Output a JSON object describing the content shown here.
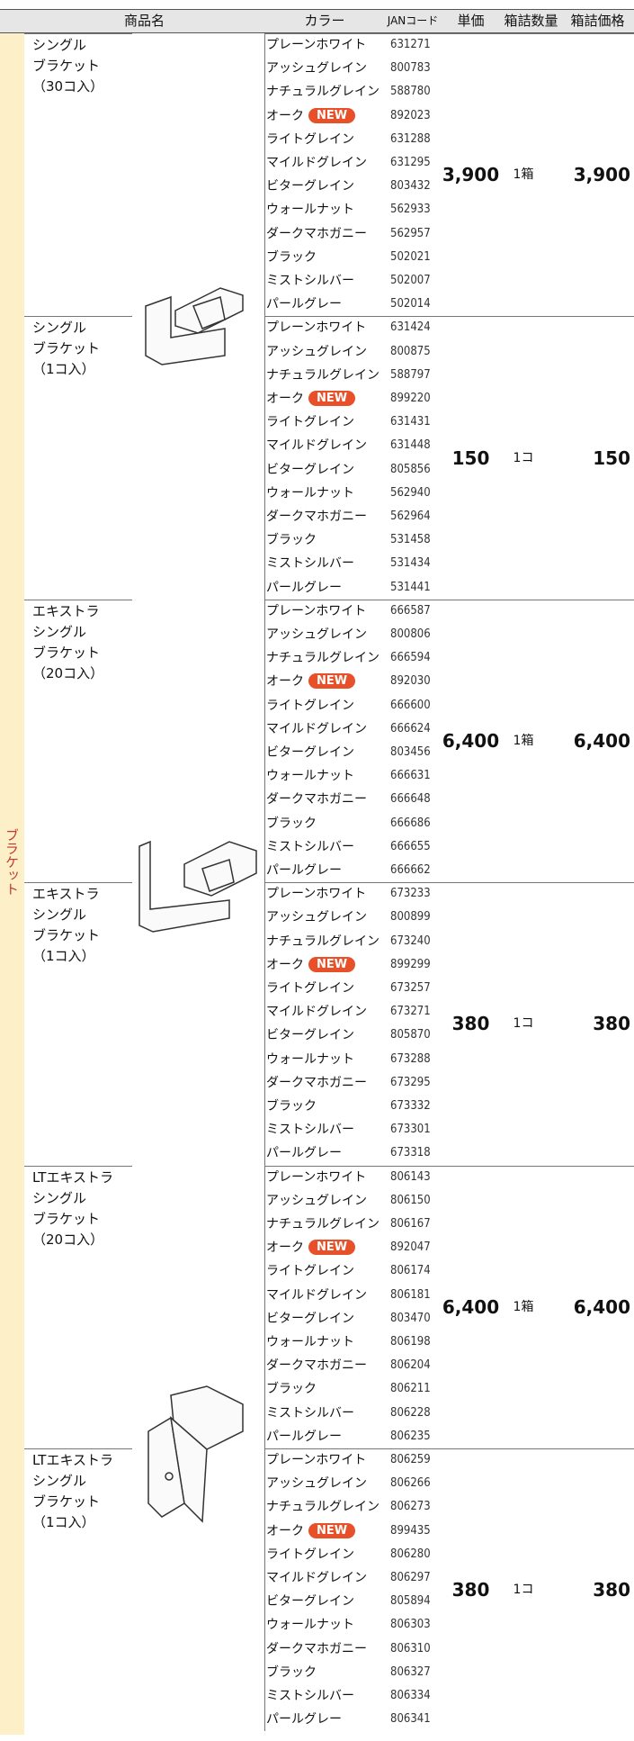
{
  "header": [
    "商品名",
    "カラー",
    "JANコード",
    "単価",
    "箱詰数量",
    "箱詰価格"
  ],
  "side_label": "ブラケット",
  "groups": [
    {
      "name": [
        "シングル",
        "ブラケット",
        "（30コ入）"
      ],
      "price": "3,900",
      "qty": "1箱",
      "box_price": "3,900",
      "rows": [
        [
          "プレーンホワイト",
          "631271"
        ],
        [
          "アッシュグレイン",
          "800783"
        ],
        [
          "ナチュラルグレイン",
          "588780"
        ],
        [
          "オーク",
          "892023",
          "NEW"
        ],
        [
          "ライトグレイン",
          "631288"
        ],
        [
          "マイルドグレイン",
          "631295"
        ],
        [
          "ビターグレイン",
          "803432"
        ],
        [
          "ウォールナット",
          "562933"
        ],
        [
          "ダークマホガニー",
          "562957"
        ],
        [
          "ブラック",
          "502021"
        ],
        [
          "ミストシルバー",
          "502007"
        ],
        [
          "パールグレー",
          "502014"
        ]
      ]
    },
    {
      "name": [
        "シングル",
        "ブラケット",
        "（1コ入）"
      ],
      "price": "150",
      "qty": "1コ",
      "box_price": "150",
      "rows": [
        [
          "プレーンホワイト",
          "631424"
        ],
        [
          "アッシュグレイン",
          "800875"
        ],
        [
          "ナチュラルグレイン",
          "588797"
        ],
        [
          "オーク",
          "899220",
          "NEW"
        ],
        [
          "ライトグレイン",
          "631431"
        ],
        [
          "マイルドグレイン",
          "631448"
        ],
        [
          "ビターグレイン",
          "805856"
        ],
        [
          "ウォールナット",
          "562940"
        ],
        [
          "ダークマホガニー",
          "562964"
        ],
        [
          "ブラック",
          "531458"
        ],
        [
          "ミストシルバー",
          "531434"
        ],
        [
          "パールグレー",
          "531441"
        ]
      ]
    },
    {
      "name": [
        "エキストラ",
        "シングル",
        "ブラケット",
        "（20コ入）"
      ],
      "price": "6,400",
      "qty": "1箱",
      "box_price": "6,400",
      "rows": [
        [
          "プレーンホワイト",
          "666587"
        ],
        [
          "アッシュグレイン",
          "800806"
        ],
        [
          "ナチュラルグレイン",
          "666594"
        ],
        [
          "オーク",
          "892030",
          "NEW"
        ],
        [
          "ライトグレイン",
          "666600"
        ],
        [
          "マイルドグレイン",
          "666624"
        ],
        [
          "ビターグレイン",
          "803456"
        ],
        [
          "ウォールナット",
          "666631"
        ],
        [
          "ダークマホガニー",
          "666648"
        ],
        [
          "ブラック",
          "666686"
        ],
        [
          "ミストシルバー",
          "666655"
        ],
        [
          "パールグレー",
          "666662"
        ]
      ]
    },
    {
      "name": [
        "エキストラ",
        "シングル",
        "ブラケット",
        "（1コ入）"
      ],
      "price": "380",
      "qty": "1コ",
      "box_price": "380",
      "rows": [
        [
          "プレーンホワイト",
          "673233"
        ],
        [
          "アッシュグレイン",
          "800899"
        ],
        [
          "ナチュラルグレイン",
          "673240"
        ],
        [
          "オーク",
          "899299",
          "NEW"
        ],
        [
          "ライトグレイン",
          "673257"
        ],
        [
          "マイルドグレイン",
          "673271"
        ],
        [
          "ビターグレイン",
          "805870"
        ],
        [
          "ウォールナット",
          "673288"
        ],
        [
          "ダークマホガニー",
          "673295"
        ],
        [
          "ブラック",
          "673332"
        ],
        [
          "ミストシルバー",
          "673301"
        ],
        [
          "パールグレー",
          "673318"
        ]
      ]
    },
    {
      "name": [
        "LTエキストラ",
        "シングル",
        "ブラケット",
        "（20コ入）"
      ],
      "price": "6,400",
      "qty": "1箱",
      "box_price": "6,400",
      "rows": [
        [
          "プレーンホワイト",
          "806143"
        ],
        [
          "アッシュグレイン",
          "806150"
        ],
        [
          "ナチュラルグレイン",
          "806167"
        ],
        [
          "オーク",
          "892047",
          "NEW"
        ],
        [
          "ライトグレイン",
          "806174"
        ],
        [
          "マイルドグレイン",
          "806181"
        ],
        [
          "ビターグレイン",
          "803470"
        ],
        [
          "ウォールナット",
          "806198"
        ],
        [
          "ダークマホガニー",
          "806204"
        ],
        [
          "ブラック",
          "806211"
        ],
        [
          "ミストシルバー",
          "806228"
        ],
        [
          "パールグレー",
          "806235"
        ]
      ]
    },
    {
      "name": [
        "LTエキストラ",
        "シングル",
        "ブラケット",
        "（1コ入）"
      ],
      "price": "380",
      "qty": "1コ",
      "box_price": "380",
      "rows": [
        [
          "プレーンホワイト",
          "806259"
        ],
        [
          "アッシュグレイン",
          "806266"
        ],
        [
          "ナチュラルグレイン",
          "806273"
        ],
        [
          "オーク",
          "899435",
          "NEW"
        ],
        [
          "ライトグレイン",
          "806280"
        ],
        [
          "マイルドグレイン",
          "806297"
        ],
        [
          "ビターグレイン",
          "805894"
        ],
        [
          "ウォールナット",
          "806303"
        ],
        [
          "ダークマホガニー",
          "806310"
        ],
        [
          "ブラック",
          "806327"
        ],
        [
          "ミストシルバー",
          "806334"
        ],
        [
          "パールグレー",
          "806341"
        ]
      ]
    }
  ]
}
